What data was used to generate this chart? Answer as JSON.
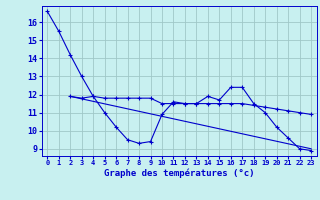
{
  "xlabel": "Graphe des températures (°c)",
  "bg_color": "#c8f0f0",
  "grid_color": "#a0c8c8",
  "line_color": "#0000cc",
  "x_ticks": [
    0,
    1,
    2,
    3,
    4,
    5,
    6,
    7,
    8,
    9,
    10,
    11,
    12,
    13,
    14,
    15,
    16,
    17,
    18,
    19,
    20,
    21,
    22,
    23
  ],
  "y_ticks": [
    9,
    10,
    11,
    12,
    13,
    14,
    15,
    16
  ],
  "ylim": [
    8.6,
    16.9
  ],
  "xlim": [
    -0.5,
    23.5
  ],
  "series1_x": [
    0,
    1,
    2,
    3,
    4,
    5,
    6,
    7,
    8,
    9,
    10,
    11,
    12,
    13,
    14,
    15,
    16,
    17,
    18,
    19,
    20,
    21,
    22,
    23
  ],
  "series1_y": [
    16.6,
    15.5,
    14.2,
    13.0,
    11.9,
    11.0,
    10.2,
    9.5,
    9.3,
    9.4,
    10.9,
    11.6,
    11.5,
    11.5,
    11.9,
    11.7,
    12.4,
    12.4,
    11.5,
    11.0,
    10.2,
    9.6,
    9.0,
    8.9
  ],
  "series2_x": [
    2,
    3,
    4,
    5,
    6,
    7,
    8,
    9,
    10,
    11,
    12,
    13,
    14,
    15,
    16,
    17,
    18,
    19,
    20,
    21,
    22,
    23
  ],
  "series2_y": [
    11.9,
    11.8,
    11.9,
    11.8,
    11.8,
    11.8,
    11.8,
    11.8,
    11.5,
    11.5,
    11.5,
    11.5,
    11.5,
    11.5,
    11.5,
    11.5,
    11.4,
    11.3,
    11.2,
    11.1,
    11.0,
    10.9
  ],
  "series3_x": [
    2,
    23
  ],
  "series3_y": [
    11.9,
    9.0
  ],
  "marker": "+"
}
